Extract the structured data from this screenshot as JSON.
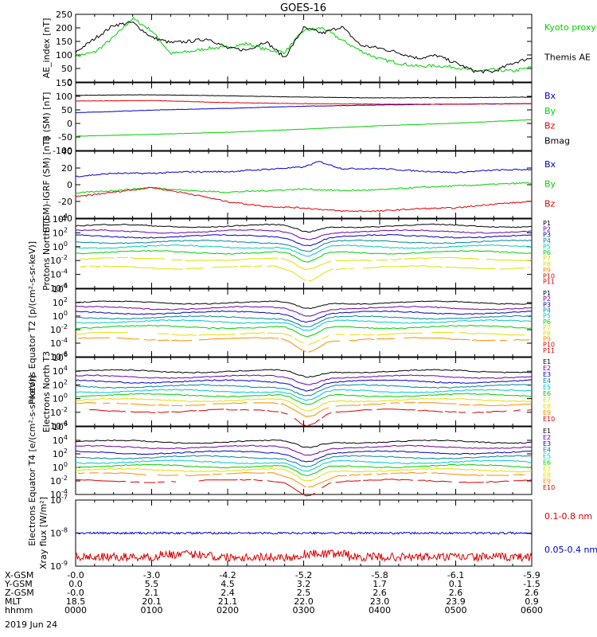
{
  "title": "GOES-16",
  "date": "2019 Jun 24",
  "colors": {
    "black": "#000000",
    "green": "#00d000",
    "blue": "#0000cc",
    "red": "#dd0000",
    "cyan": "#00c8c8",
    "yellow": "#e0e000",
    "orange": "#ff8c00",
    "purple": "#7000a0",
    "teal": "#008890"
  },
  "ephemeris": {
    "rows": [
      {
        "label": "X-GSM",
        "values": [
          "-0.0",
          "-3.0",
          "-4.2",
          "-5.2",
          "-5.8",
          "-6.1",
          "-5.9"
        ]
      },
      {
        "label": "Y-GSM",
        "values": [
          "0.0",
          "5.5",
          "4.5",
          "3.2",
          "1.7",
          "0.1",
          "-1.5"
        ]
      },
      {
        "label": "Z-GSM",
        "values": [
          "-0.0",
          "2.1",
          "2.4",
          "2.5",
          "2.6",
          "2.6",
          "2.6"
        ]
      },
      {
        "label": "MLT",
        "values": [
          "18.5",
          "20.1",
          "21.1",
          "22.0",
          "23.0",
          "23.9",
          "0.9"
        ]
      },
      {
        "label": "hhmm",
        "values": [
          "0000",
          "0100",
          "0200",
          "0300",
          "0400",
          "0500",
          "0600"
        ]
      }
    ]
  },
  "chart_data": [
    {
      "type": "line",
      "ylabel": "AE_index [nT]",
      "ylim": [
        0,
        250
      ],
      "yticks": [
        "0",
        "50",
        "100",
        "150",
        "200",
        "250"
      ],
      "series": [
        {
          "name": "Kyoto proxy AE",
          "color": "#00d000",
          "x": [
            0,
            0.25,
            0.5,
            0.75,
            1.0,
            1.25,
            1.5,
            1.75,
            2.0,
            2.25,
            2.5,
            2.75,
            3.0,
            3.25,
            3.5,
            3.75,
            4.0,
            4.25,
            4.5,
            4.75,
            5.0,
            5.25,
            5.5,
            5.75,
            6.0
          ],
          "values": [
            95,
            110,
            165,
            235,
            190,
            105,
            112,
            125,
            128,
            142,
            120,
            110,
            190,
            200,
            155,
            115,
            85,
            70,
            58,
            60,
            55,
            40,
            45,
            40,
            55
          ]
        },
        {
          "name": "Themis AE",
          "color": "#000000",
          "x": [
            0,
            0.25,
            0.5,
            0.75,
            1.0,
            1.25,
            1.5,
            1.75,
            2.0,
            2.25,
            2.5,
            2.75,
            3.0,
            3.25,
            3.5,
            3.75,
            4.0,
            4.25,
            4.5,
            4.75,
            5.0,
            5.25,
            5.5,
            5.75,
            6.0
          ],
          "values": [
            110,
            160,
            210,
            220,
            165,
            145,
            150,
            160,
            125,
            118,
            150,
            90,
            200,
            180,
            205,
            135,
            125,
            108,
            88,
            98,
            70,
            40,
            38,
            70,
            90
          ]
        }
      ]
    },
    {
      "type": "line",
      "ylabel": "B (SM) [nT]",
      "ylim": [
        -110,
        150
      ],
      "yticks": [
        "-100",
        "-50",
        "0",
        "50",
        "100",
        "150"
      ],
      "series": [
        {
          "name": "Bx",
          "color": "#0000cc",
          "x": [
            0,
            1,
            2,
            3,
            4,
            5,
            6
          ],
          "values": [
            35,
            45,
            52,
            60,
            65,
            68,
            70
          ]
        },
        {
          "name": "By",
          "color": "#00d000",
          "x": [
            0,
            1,
            2,
            3,
            4,
            5,
            6
          ],
          "values": [
            -55,
            -48,
            -40,
            -28,
            -15,
            -5,
            8
          ]
        },
        {
          "name": "Bz",
          "color": "#dd0000",
          "x": [
            0,
            1,
            2,
            3,
            4,
            5,
            6
          ],
          "values": [
            80,
            82,
            74,
            70,
            68,
            68,
            70
          ]
        },
        {
          "name": "Bmag",
          "color": "#000000",
          "x": [
            0,
            1,
            2,
            3,
            4,
            5,
            6
          ],
          "values": [
            102,
            104,
            100,
            95,
            92,
            93,
            95
          ]
        }
      ]
    },
    {
      "type": "line",
      "ylabel": "B (SM)-IGRF (SM) [nT]",
      "ylim": [
        -45,
        40
      ],
      "yticks": [
        "-40",
        "-20",
        "0",
        "20",
        "40"
      ],
      "series": [
        {
          "name": "Bx",
          "color": "#0000cc",
          "x": [
            0,
            0.5,
            1,
            1.5,
            2,
            2.5,
            3,
            3.2,
            3.5,
            4,
            4.5,
            5,
            5.5,
            6
          ],
          "values": [
            8,
            12,
            12,
            14,
            14,
            17,
            20,
            27,
            18,
            18,
            15,
            13,
            16,
            17
          ]
        },
        {
          "name": "By",
          "color": "#00d000",
          "x": [
            0,
            0.5,
            1,
            1.5,
            2,
            2.5,
            3,
            3.5,
            4,
            4.5,
            5,
            5.5,
            6
          ],
          "values": [
            -13,
            -10,
            -6,
            -10,
            -12,
            -10,
            -8,
            -10,
            -9,
            -6,
            -4,
            -2,
            0
          ]
        },
        {
          "name": "Bz",
          "color": "#dd0000",
          "x": [
            0,
            0.5,
            1,
            1.5,
            2,
            2.5,
            3,
            3.5,
            4,
            4.5,
            5,
            5.5,
            6
          ],
          "values": [
            -18,
            -12,
            -6,
            -14,
            -24,
            -30,
            -32,
            -36,
            -36,
            -33,
            -32,
            -27,
            -24
          ]
        }
      ]
    },
    {
      "type": "line",
      "ylabel": "Protons North T1",
      "scale": "log",
      "ylim": [
        -6,
        4
      ],
      "yticks": [
        "10^-6",
        "10^-4",
        "10^-2",
        "10^0",
        "10^2",
        "10^4"
      ],
      "legend": [
        "P1",
        "P2",
        "P3",
        "P4",
        "P5",
        "P6",
        "P7",
        "P8",
        "P9",
        "P10",
        "P11"
      ],
      "levels": [
        3.0,
        2.2,
        1.5,
        0.7,
        0.0,
        -0.8,
        -1.8,
        -3.0
      ],
      "series_colors": [
        "#000000",
        "#7000a0",
        "#0000cc",
        "#008890",
        "#00c8c8",
        "#00d000",
        "#e0e000",
        "#e0e000"
      ]
    },
    {
      "type": "line",
      "ylabel": "Protons Equator T2 [p/(cm²-s-sr-keV)]",
      "scale": "log",
      "ylim": [
        -6,
        4
      ],
      "yticks": [
        "10^-6",
        "10^-4",
        "10^-2",
        "10^0",
        "10^2",
        "10^4"
      ],
      "legend": [
        "P1",
        "P2",
        "P3",
        "P4",
        "P5",
        "P6",
        "P7",
        "P8",
        "P9",
        "P10",
        "P11"
      ],
      "levels": [
        2.0,
        1.2,
        0.5,
        -0.2,
        -0.8,
        -1.6,
        -2.6,
        -3.4
      ],
      "series_colors": [
        "#000000",
        "#7000a0",
        "#0000cc",
        "#008890",
        "#00c8c8",
        "#00d000",
        "#e0e000",
        "#ff8c00"
      ]
    },
    {
      "type": "line",
      "ylabel": "Electrons North T3",
      "scale": "log",
      "ylim": [
        -4,
        6
      ],
      "yticks": [
        "10^-4",
        "10^-2",
        "10^0",
        "10^2",
        "10^4",
        "10^6"
      ],
      "legend": [
        "E1",
        "E2",
        "E3",
        "E4",
        "E5",
        "E6",
        "E7",
        "E8",
        "E9",
        "E10"
      ],
      "levels": [
        4.0,
        3.2,
        2.5,
        1.8,
        1.1,
        0.5,
        -0.2,
        -0.8,
        -1.8
      ],
      "series_colors": [
        "#000000",
        "#7000a0",
        "#0000cc",
        "#008890",
        "#00c8c8",
        "#00d000",
        "#e0e000",
        "#ff8c00",
        "#dd0000"
      ]
    },
    {
      "type": "line",
      "ylabel": "Electrons Equator T4 [e/(cm²-s-sr-keV)]",
      "scale": "log",
      "ylim": [
        -4,
        6
      ],
      "yticks": [
        "10^-4",
        "10^-2",
        "10^0",
        "10^2",
        "10^4",
        "10^6"
      ],
      "legend": [
        "E1",
        "E2",
        "E3",
        "E4",
        "E5",
        "E6",
        "E7",
        "E8",
        "E9",
        "E10"
      ],
      "levels": [
        3.8,
        3.0,
        2.2,
        1.5,
        0.8,
        0.2,
        -0.4,
        -1.0,
        -2.0
      ],
      "series_colors": [
        "#000000",
        "#7000a0",
        "#0000cc",
        "#008890",
        "#00c8c8",
        "#00d000",
        "#e0e000",
        "#ff8c00",
        "#dd0000"
      ]
    },
    {
      "type": "line",
      "ylabel": "Xray flux [W/m²]",
      "scale": "log",
      "ylim": [
        -9,
        -7
      ],
      "yticks": [
        "10^-9",
        "10^-8",
        "10^-7"
      ],
      "series": [
        {
          "name": "0.1-0.8 nm",
          "color": "#dd0000",
          "level": -8.8
        },
        {
          "name": "0.05-0.4 nm",
          "color": "#0000cc",
          "level": -8.0
        }
      ]
    }
  ]
}
